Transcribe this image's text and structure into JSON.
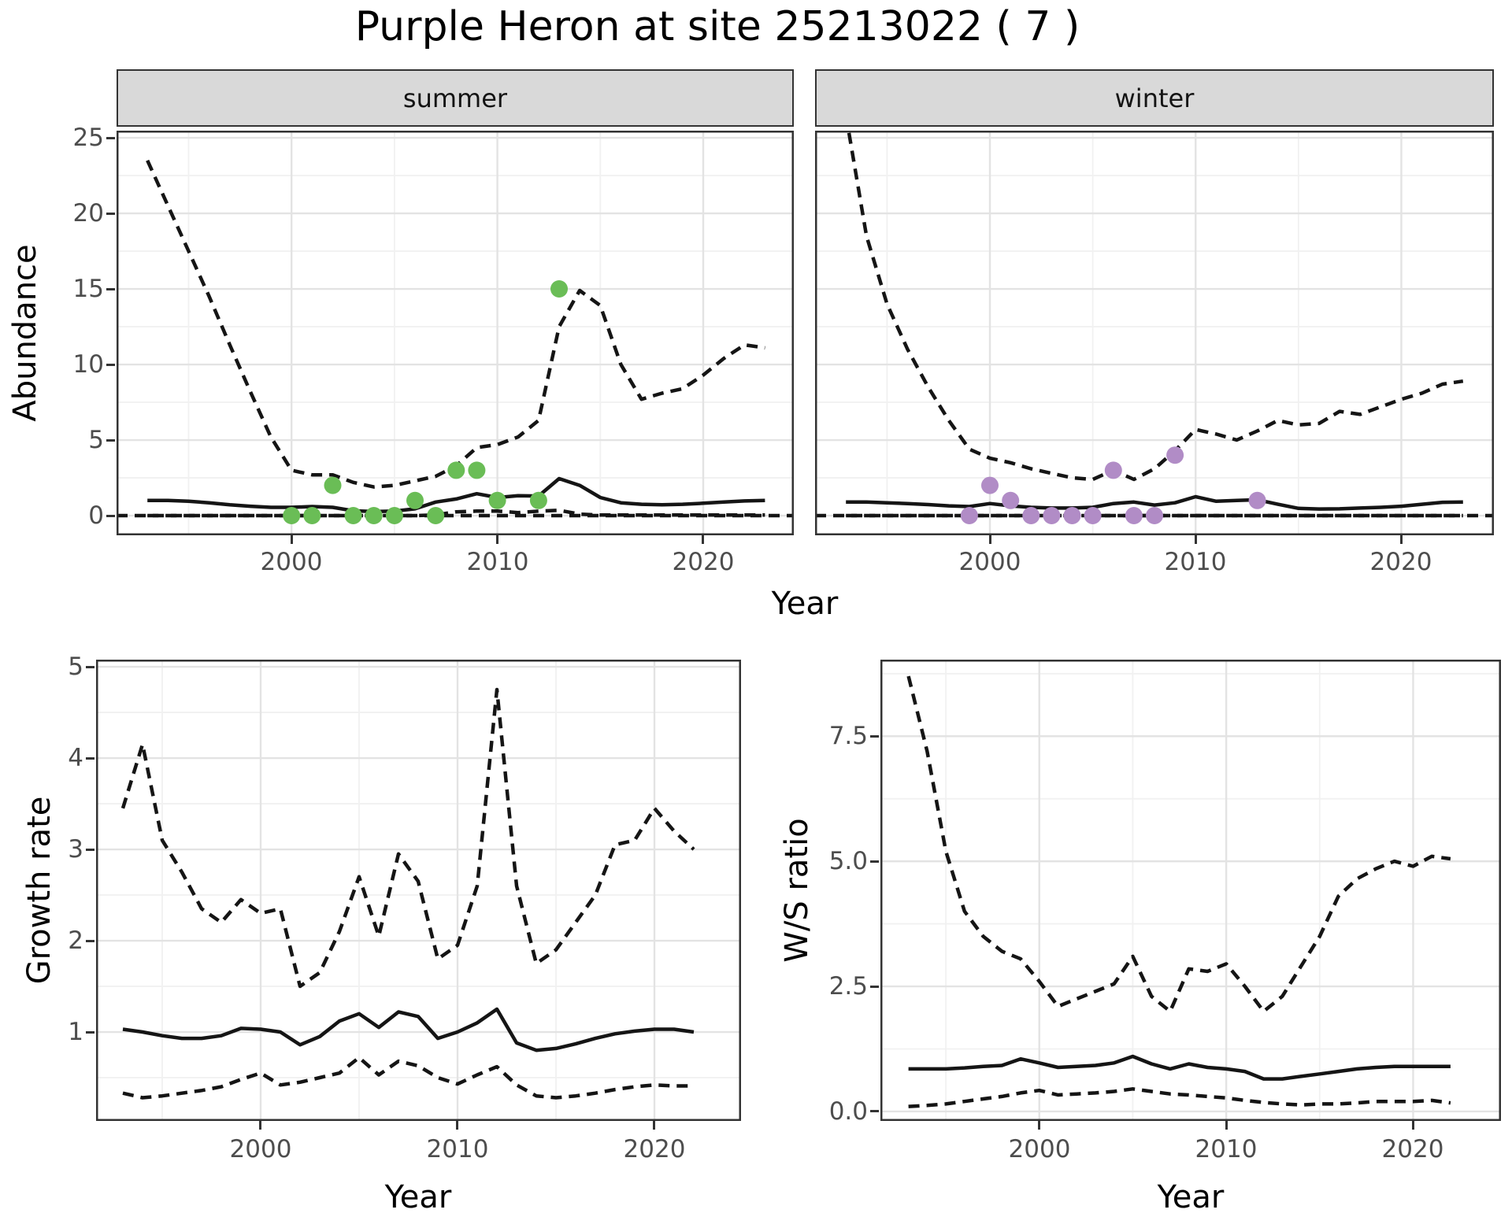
{
  "title": "Purple Heron at site 25213022 ( 7 )",
  "facets": {
    "summer": "summer",
    "winter": "winter"
  },
  "axis_labels": {
    "x": "Year",
    "abundance": "Abundance",
    "growth_rate": "Growth rate",
    "ws_ratio": "W/S ratio"
  },
  "colors": {
    "summer_points": "#6abd56",
    "winter_points": "#b18cc6",
    "line": "#151515",
    "strip_fill": "#d9d9d9",
    "panel_border": "#333333",
    "grid_major": "#e3e3e3",
    "grid_minor": "#f1f1f1",
    "tick_text": "#4d4d4d"
  },
  "chart_data": [
    {
      "key": "abundance_summer",
      "type": "line",
      "facet": "summer",
      "xlabel": "Year",
      "ylabel": "Abundance",
      "x_domain": [
        1991.5,
        2024.4
      ],
      "y_domain": [
        -1.3,
        25.47
      ],
      "x_ticks": [
        2000,
        2010,
        2020
      ],
      "x_tick_labels": [
        "2000",
        "2010",
        "2020"
      ],
      "x_minor_ticks": [
        1995,
        2005,
        2015
      ],
      "y_ticks": [
        0,
        5,
        10,
        15,
        20,
        25
      ],
      "y_tick_labels": [
        "0",
        "5",
        "10",
        "15",
        "20",
        "25"
      ],
      "y_minor_ticks": [
        2.5,
        7.5,
        12.5,
        17.5,
        22.5
      ],
      "reference_line_y": 0,
      "years": [
        1993,
        1994,
        1995,
        1996,
        1997,
        1998,
        1999,
        2000,
        2001,
        2002,
        2003,
        2004,
        2005,
        2006,
        2007,
        2008,
        2009,
        2010,
        2011,
        2012,
        2013,
        2014,
        2015,
        2016,
        2017,
        2018,
        2019,
        2020,
        2021,
        2022,
        2023
      ],
      "series": [
        {
          "name": "upper_95ci",
          "style": "dashed",
          "values": [
            23.5,
            20.5,
            17.5,
            14.5,
            11.3,
            8.2,
            5.2,
            3.0,
            2.7,
            2.7,
            2.2,
            1.9,
            2.0,
            2.3,
            2.6,
            3.3,
            4.5,
            4.7,
            5.2,
            6.3,
            12.5,
            14.9,
            13.9,
            10.0,
            7.7,
            8.1,
            8.4,
            9.3,
            10.4,
            11.3,
            11.1
          ]
        },
        {
          "name": "fit",
          "style": "solid",
          "values": [
            1.0,
            1.0,
            0.95,
            0.85,
            0.72,
            0.62,
            0.55,
            0.55,
            0.6,
            0.55,
            0.32,
            0.27,
            0.3,
            0.45,
            0.9,
            1.1,
            1.45,
            1.2,
            1.32,
            1.3,
            2.45,
            2.0,
            1.2,
            0.85,
            0.75,
            0.72,
            0.75,
            0.82,
            0.9,
            0.97,
            1.0
          ]
        },
        {
          "name": "lower_95ci",
          "style": "dashed",
          "values": [
            0,
            0,
            0,
            0,
            0,
            0,
            0,
            0,
            0,
            0,
            0,
            0,
            0,
            0,
            0.05,
            0.25,
            0.3,
            0.3,
            0.2,
            0.3,
            0.35,
            0.1,
            0.04,
            0.04,
            0.04,
            0.04,
            0.04,
            0.04,
            0.04,
            0.04,
            0.04
          ]
        }
      ],
      "points": {
        "color_key": "summer_points",
        "data": [
          [
            2000,
            0
          ],
          [
            2001,
            0
          ],
          [
            2002,
            2
          ],
          [
            2003,
            0
          ],
          [
            2004,
            0
          ],
          [
            2005,
            0
          ],
          [
            2006,
            1
          ],
          [
            2007,
            0
          ],
          [
            2008,
            3
          ],
          [
            2009,
            3
          ],
          [
            2010,
            1
          ],
          [
            2012,
            1
          ],
          [
            2013,
            15
          ]
        ]
      }
    },
    {
      "key": "abundance_winter",
      "type": "line",
      "facet": "winter",
      "xlabel": "Year",
      "ylabel": "Abundance",
      "x_domain": [
        1991.5,
        2024.5
      ],
      "y_domain": [
        -1.3,
        25.47
      ],
      "x_ticks": [
        2000,
        2010,
        2020
      ],
      "x_tick_labels": [
        "2000",
        "2010",
        "2020"
      ],
      "x_minor_ticks": [
        1995,
        2005,
        2015
      ],
      "y_ticks": [
        0,
        5,
        10,
        15,
        20,
        25
      ],
      "y_tick_labels": [
        "0",
        "5",
        "10",
        "15",
        "20",
        "25"
      ],
      "y_minor_ticks": [
        2.5,
        7.5,
        12.5,
        17.5,
        22.5
      ],
      "reference_line_y": 0,
      "years": [
        1993,
        1994,
        1995,
        1996,
        1997,
        1998,
        1999,
        2000,
        2001,
        2002,
        2003,
        2004,
        2005,
        2006,
        2007,
        2008,
        2009,
        2010,
        2011,
        2012,
        2013,
        2014,
        2015,
        2016,
        2017,
        2018,
        2019,
        2020,
        2021,
        2022,
        2023
      ],
      "series": [
        {
          "name": "upper_95ci",
          "style": "dashed",
          "values": [
            26.5,
            18.5,
            14.0,
            11.0,
            8.5,
            6.3,
            4.4,
            3.8,
            3.5,
            3.1,
            2.8,
            2.5,
            2.4,
            3.0,
            2.4,
            3.1,
            4.3,
            5.7,
            5.4,
            5.0,
            5.6,
            6.3,
            6.0,
            6.1,
            6.9,
            6.7,
            7.2,
            7.7,
            8.1,
            8.7,
            8.9
          ]
        },
        {
          "name": "fit",
          "style": "solid",
          "values": [
            0.9,
            0.9,
            0.85,
            0.8,
            0.73,
            0.65,
            0.6,
            0.8,
            0.65,
            0.55,
            0.5,
            0.5,
            0.55,
            0.8,
            0.9,
            0.7,
            0.85,
            1.25,
            0.95,
            1.0,
            1.05,
            0.75,
            0.48,
            0.44,
            0.45,
            0.5,
            0.55,
            0.62,
            0.75,
            0.88,
            0.9
          ]
        },
        {
          "name": "lower_95ci",
          "style": "dashed",
          "values": [
            0,
            0,
            0,
            0,
            0,
            0,
            0,
            0,
            0,
            0,
            0,
            0,
            0,
            0,
            0,
            0,
            0,
            0,
            0,
            0,
            0,
            0,
            0,
            0,
            0,
            0,
            0,
            0,
            0,
            0,
            0
          ]
        }
      ],
      "points": {
        "color_key": "winter_points",
        "data": [
          [
            1999,
            0
          ],
          [
            2000,
            2
          ],
          [
            2001,
            1
          ],
          [
            2002,
            0
          ],
          [
            2003,
            0
          ],
          [
            2004,
            0
          ],
          [
            2005,
            0
          ],
          [
            2006,
            3
          ],
          [
            2007,
            0
          ],
          [
            2008,
            0
          ],
          [
            2009,
            4
          ],
          [
            2013,
            1
          ]
        ]
      }
    },
    {
      "key": "growth_rate",
      "type": "line",
      "facet": null,
      "xlabel": "Year",
      "ylabel": "Growth rate",
      "x_domain": [
        1991.64,
        2024.4
      ],
      "y_domain": [
        0.026,
        5.078
      ],
      "x_ticks": [
        2000,
        2010,
        2020
      ],
      "x_tick_labels": [
        "2000",
        "2010",
        "2020"
      ],
      "x_minor_ticks": [
        1995,
        2005,
        2015
      ],
      "y_ticks": [
        1,
        2,
        3,
        4,
        5
      ],
      "y_tick_labels": [
        "1",
        "2",
        "3",
        "4",
        "5"
      ],
      "y_minor_ticks": [
        0.5,
        1.5,
        2.5,
        3.5,
        4.5
      ],
      "reference_line_y": null,
      "years": [
        1993,
        1994,
        1995,
        1996,
        1997,
        1998,
        1999,
        2000,
        2001,
        2002,
        2003,
        2004,
        2005,
        2006,
        2007,
        2008,
        2009,
        2010,
        2011,
        2012,
        2013,
        2014,
        2015,
        2016,
        2017,
        2018,
        2019,
        2020,
        2021,
        2022
      ],
      "series": [
        {
          "name": "upper_95ci",
          "style": "dashed",
          "values": [
            3.45,
            4.15,
            3.1,
            2.75,
            2.35,
            2.2,
            2.45,
            2.3,
            2.35,
            1.5,
            1.65,
            2.1,
            2.7,
            2.05,
            2.95,
            2.65,
            1.8,
            1.95,
            2.6,
            4.75,
            2.6,
            1.75,
            1.9,
            2.2,
            2.5,
            3.05,
            3.1,
            3.45,
            3.2,
            3.0
          ]
        },
        {
          "name": "fit",
          "style": "solid",
          "values": [
            1.03,
            1.0,
            0.96,
            0.93,
            0.93,
            0.96,
            1.04,
            1.03,
            1.0,
            0.86,
            0.95,
            1.12,
            1.2,
            1.05,
            1.22,
            1.17,
            0.93,
            1.0,
            1.1,
            1.25,
            0.88,
            0.8,
            0.82,
            0.87,
            0.93,
            0.98,
            1.01,
            1.03,
            1.03,
            1.0
          ]
        },
        {
          "name": "lower_95ci",
          "style": "dashed",
          "values": [
            0.33,
            0.28,
            0.3,
            0.33,
            0.36,
            0.4,
            0.48,
            0.55,
            0.42,
            0.45,
            0.5,
            0.55,
            0.72,
            0.53,
            0.68,
            0.63,
            0.5,
            0.43,
            0.53,
            0.62,
            0.42,
            0.3,
            0.28,
            0.3,
            0.33,
            0.37,
            0.4,
            0.42,
            0.41,
            0.41
          ]
        }
      ],
      "points": null
    },
    {
      "key": "ws_ratio",
      "type": "line",
      "facet": null,
      "xlabel": "Year",
      "ylabel": "W/S ratio",
      "x_domain": [
        1991.5,
        2024.7
      ],
      "y_domain": [
        -0.19,
        9.03
      ],
      "x_ticks": [
        2000,
        2010,
        2020
      ],
      "x_tick_labels": [
        "2000",
        "2010",
        "2020"
      ],
      "x_minor_ticks": [
        1995,
        2005,
        2015
      ],
      "y_ticks": [
        0,
        2.5,
        5,
        7.5
      ],
      "y_tick_labels": [
        "0.0",
        "2.5",
        "5.0",
        "7.5"
      ],
      "y_minor_ticks": [
        1.25,
        3.75,
        6.25,
        8.75
      ],
      "reference_line_y": null,
      "years": [
        1993,
        1994,
        1995,
        1996,
        1997,
        1998,
        1999,
        2000,
        2001,
        2002,
        2003,
        2004,
        2005,
        2006,
        2007,
        2008,
        2009,
        2010,
        2011,
        2012,
        2013,
        2014,
        2015,
        2016,
        2017,
        2018,
        2019,
        2020,
        2021,
        2022
      ],
      "series": [
        {
          "name": "upper_95ci",
          "style": "dashed",
          "values": [
            8.7,
            7.2,
            5.2,
            4.0,
            3.5,
            3.2,
            3.05,
            2.6,
            2.1,
            2.25,
            2.4,
            2.55,
            3.1,
            2.3,
            2.0,
            2.85,
            2.8,
            2.95,
            2.5,
            2.0,
            2.3,
            2.9,
            3.5,
            4.3,
            4.65,
            4.85,
            5.0,
            4.9,
            5.1,
            5.05
          ]
        },
        {
          "name": "fit",
          "style": "solid",
          "values": [
            0.85,
            0.85,
            0.85,
            0.87,
            0.9,
            0.92,
            1.05,
            0.97,
            0.88,
            0.9,
            0.92,
            0.97,
            1.1,
            0.95,
            0.85,
            0.95,
            0.88,
            0.85,
            0.8,
            0.65,
            0.65,
            0.7,
            0.75,
            0.8,
            0.85,
            0.88,
            0.9,
            0.9,
            0.9,
            0.9
          ]
        },
        {
          "name": "lower_95ci",
          "style": "dashed",
          "values": [
            0.1,
            0.12,
            0.15,
            0.2,
            0.25,
            0.3,
            0.37,
            0.42,
            0.33,
            0.35,
            0.37,
            0.4,
            0.45,
            0.4,
            0.35,
            0.33,
            0.3,
            0.27,
            0.22,
            0.18,
            0.15,
            0.13,
            0.15,
            0.15,
            0.17,
            0.2,
            0.2,
            0.2,
            0.22,
            0.17
          ]
        }
      ],
      "points": null
    }
  ]
}
